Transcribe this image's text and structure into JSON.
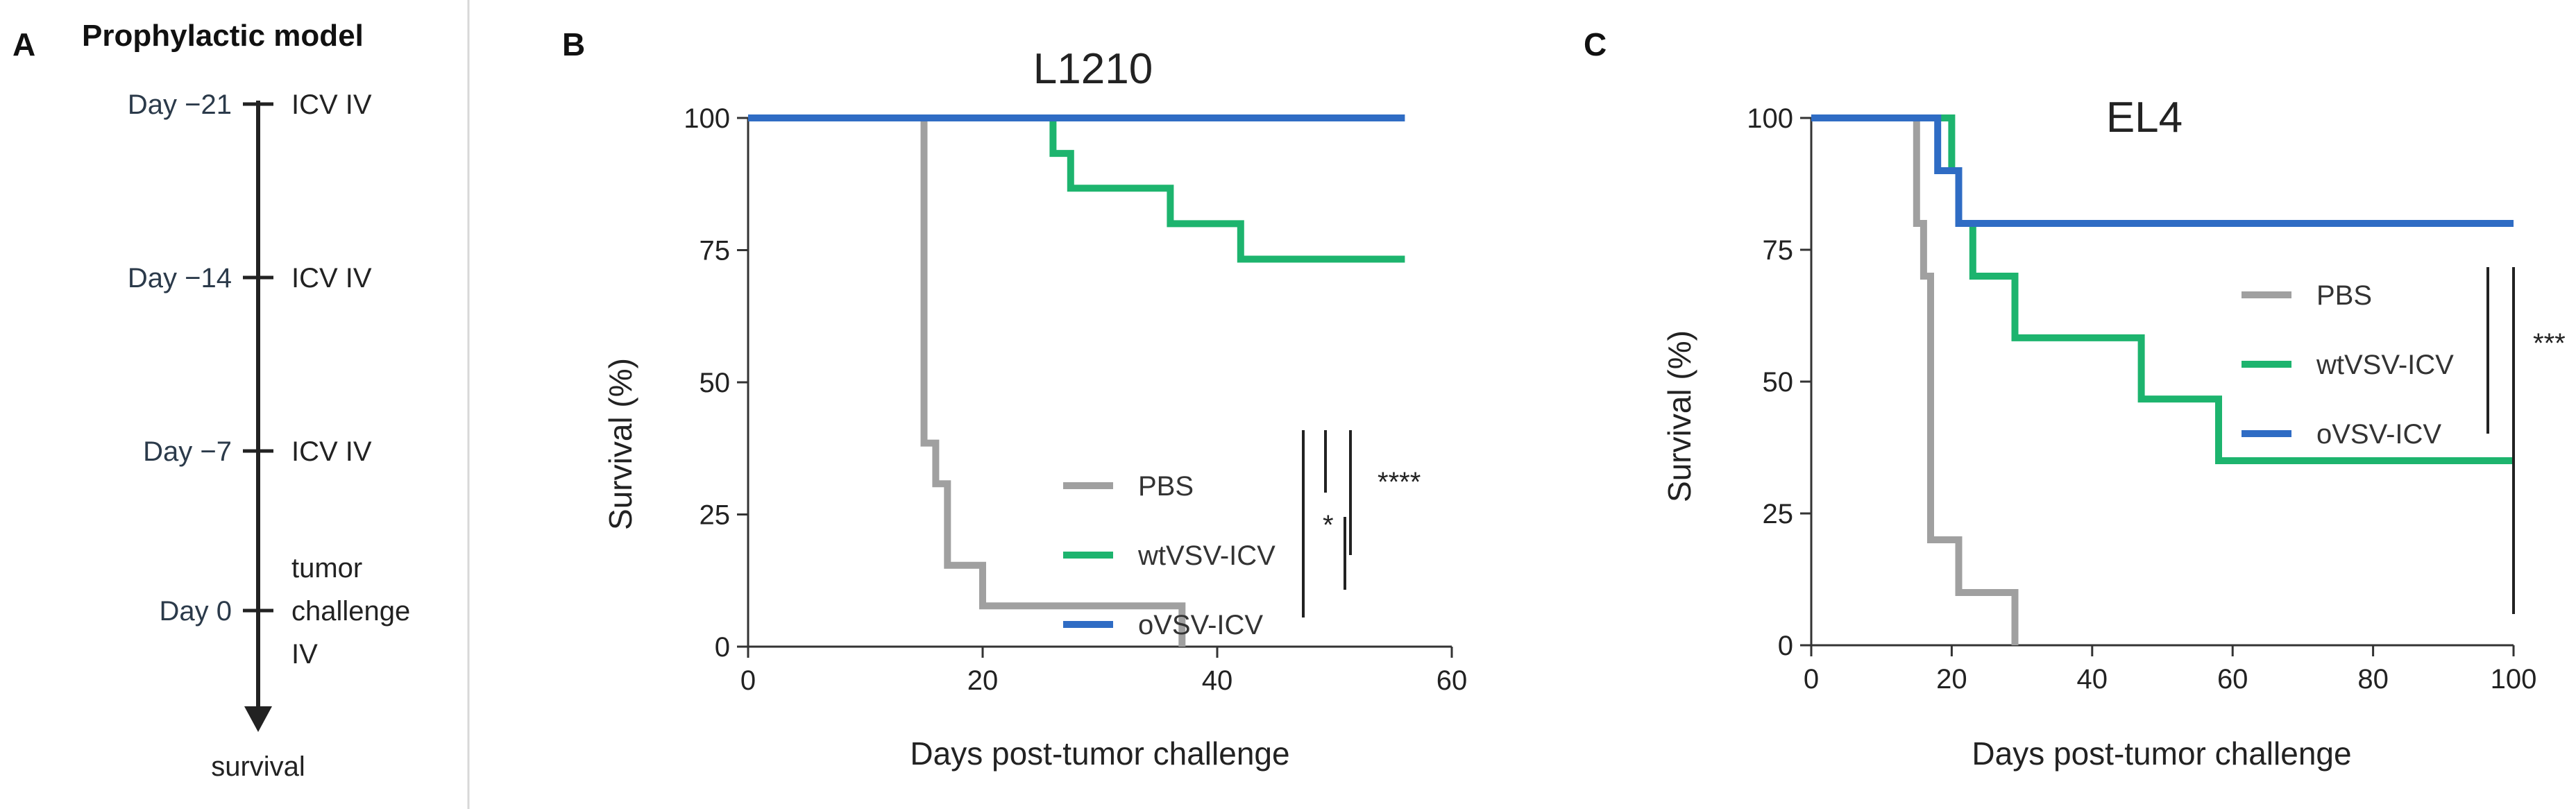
{
  "panelA": {
    "letter": "A",
    "title": "Prophylactic model",
    "events": [
      {
        "day": "Day −21",
        "label": [
          "ICV IV"
        ]
      },
      {
        "day": "Day −14",
        "label": [
          "ICV IV"
        ]
      },
      {
        "day": "Day −7",
        "label": [
          "ICV IV"
        ]
      },
      {
        "day": "Day 0",
        "label": [
          "tumor",
          "challenge",
          "IV"
        ]
      }
    ],
    "end_label": "survival"
  },
  "chart_data": [
    {
      "letter": "B",
      "type": "line",
      "step": true,
      "title": "L1210",
      "xlabel": "Days post-tumor challenge",
      "ylabel": "Survival (%)",
      "xlim": [
        0,
        60
      ],
      "ylim": [
        0,
        100
      ],
      "xticks": [
        0,
        20,
        40,
        60
      ],
      "yticks": [
        0,
        25,
        50,
        75,
        100
      ],
      "series": [
        {
          "name": "PBS",
          "color": "#a0a0a0",
          "points": [
            [
              0,
              100
            ],
            [
              15,
              100
            ],
            [
              15,
              38.5
            ],
            [
              16,
              38.5
            ],
            [
              16,
              30.8
            ],
            [
              17,
              30.8
            ],
            [
              17,
              15.4
            ],
            [
              20,
              15.4
            ],
            [
              20,
              7.7
            ],
            [
              37,
              7.7
            ],
            [
              37,
              0
            ]
          ]
        },
        {
          "name": "wtVSV-ICV",
          "color": "#1db46e",
          "points": [
            [
              0,
              100
            ],
            [
              26,
              100
            ],
            [
              26,
              93.3
            ],
            [
              27.5,
              93.3
            ],
            [
              27.5,
              86.7
            ],
            [
              36,
              86.7
            ],
            [
              36,
              80
            ],
            [
              42,
              80
            ],
            [
              42,
              73.3
            ],
            [
              56,
              73.3
            ]
          ]
        },
        {
          "name": "oVSV-ICV",
          "color": "#2f6cc4",
          "points": [
            [
              0,
              100
            ],
            [
              56,
              100
            ]
          ]
        }
      ],
      "significance": [
        {
          "label": "*",
          "between": [
            "wtVSV-ICV",
            "oVSV-ICV"
          ]
        },
        {
          "label": "****",
          "between": [
            "PBS",
            "oVSV-ICV"
          ]
        }
      ],
      "legend_position": "center-right"
    },
    {
      "letter": "C",
      "type": "line",
      "step": true,
      "title": "EL4",
      "xlabel": "Days post-tumor challenge",
      "ylabel": "Survival (%)",
      "xlim": [
        0,
        100
      ],
      "ylim": [
        0,
        100
      ],
      "xticks": [
        0,
        20,
        40,
        60,
        80,
        100
      ],
      "yticks": [
        0,
        25,
        50,
        75,
        100
      ],
      "series": [
        {
          "name": "PBS",
          "color": "#a0a0a0",
          "points": [
            [
              0,
              100
            ],
            [
              15,
              100
            ],
            [
              15,
              80
            ],
            [
              16,
              80
            ],
            [
              16,
              70
            ],
            [
              17,
              70
            ],
            [
              17,
              20
            ],
            [
              21,
              20
            ],
            [
              21,
              10
            ],
            [
              29,
              10
            ],
            [
              29,
              0
            ]
          ]
        },
        {
          "name": "wtVSV-ICV",
          "color": "#1db46e",
          "points": [
            [
              0,
              100
            ],
            [
              20,
              100
            ],
            [
              20,
              90
            ],
            [
              21,
              90
            ],
            [
              21,
              80
            ],
            [
              23,
              80
            ],
            [
              23,
              70
            ],
            [
              29,
              70
            ],
            [
              29,
              58.3
            ],
            [
              47,
              58.3
            ],
            [
              47,
              46.7
            ],
            [
              58,
              46.7
            ],
            [
              58,
              35
            ],
            [
              100,
              35
            ]
          ]
        },
        {
          "name": "oVSV-ICV",
          "color": "#2f6cc4",
          "points": [
            [
              0,
              100
            ],
            [
              18,
              100
            ],
            [
              18,
              90
            ],
            [
              21,
              90
            ],
            [
              21,
              80
            ],
            [
              100,
              80
            ]
          ]
        }
      ],
      "significance": [
        {
          "label": "***",
          "between": [
            "PBS",
            "oVSV-ICV"
          ]
        }
      ],
      "legend_position": "center-right"
    }
  ]
}
